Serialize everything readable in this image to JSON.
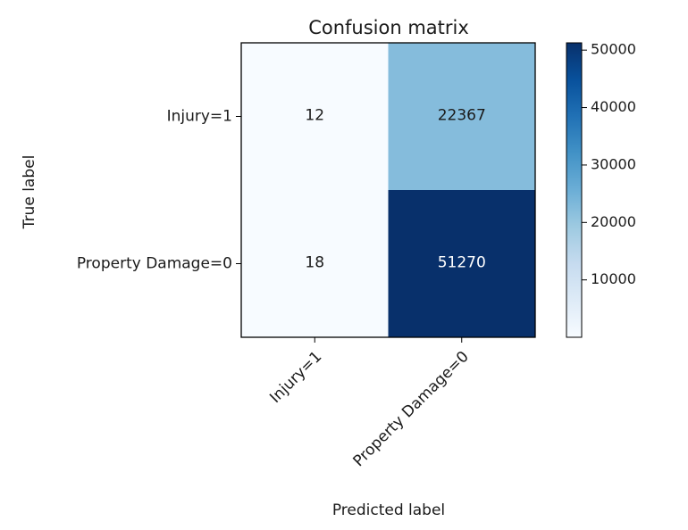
{
  "chart_data": {
    "type": "heatmap",
    "title": "Confusion matrix",
    "xlabel": "Predicted label",
    "ylabel": "True label",
    "row_labels": [
      "Injury=1",
      "Property Damage=0"
    ],
    "col_labels": [
      "Injury=1",
      "Property Damage=0"
    ],
    "values": [
      [
        12,
        22367
      ],
      [
        18,
        51270
      ]
    ],
    "colormap": "Blues",
    "colorbar": {
      "ticks": [
        10000,
        20000,
        30000,
        40000,
        50000
      ],
      "tick_labels": [
        "10000",
        "20000",
        "30000",
        "40000",
        "50000"
      ],
      "range": [
        12,
        51270
      ]
    },
    "colors": {
      "low": "#f7fbff",
      "high": "#08306b"
    },
    "legend": "none",
    "grid": false
  }
}
